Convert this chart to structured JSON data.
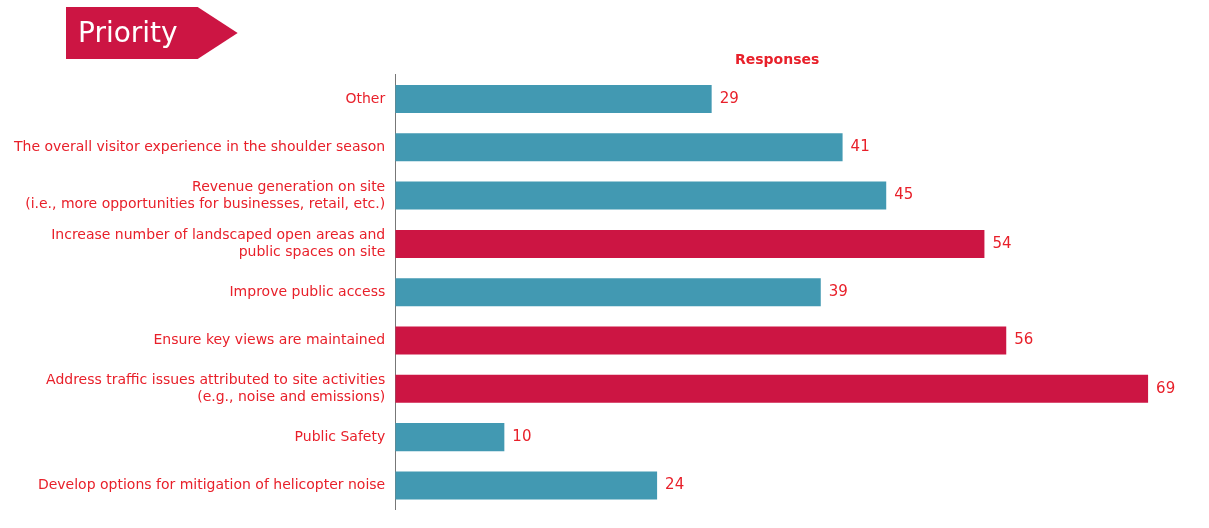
{
  "chart_data": {
    "type": "bar",
    "orientation": "horizontal",
    "title": "Priority",
    "xlabel": "Responses",
    "categories": [
      "Other",
      "The overall visitor experience in the shoulder season",
      "Revenue generation on site\n(i.e., more opportunities for businesses, retail, etc.)",
      "Increase number of landscaped open areas and\npublic spaces on site",
      "Improve public access",
      "Ensure key views are maintained",
      "Address traffic issues attributed to site activities\n(e.g., noise and emissions)",
      "Public Safety",
      "Develop options for mitigation of helicopter noise"
    ],
    "values": [
      29,
      41,
      45,
      54,
      39,
      56,
      69,
      10,
      24
    ],
    "colors": [
      "#4299b2",
      "#4299b2",
      "#4299b2",
      "#cc1543",
      "#4299b2",
      "#cc1543",
      "#cc1543",
      "#4299b2",
      "#4299b2"
    ],
    "data_labels": true,
    "grid": false,
    "legend": false,
    "tick_labels": "y"
  }
}
